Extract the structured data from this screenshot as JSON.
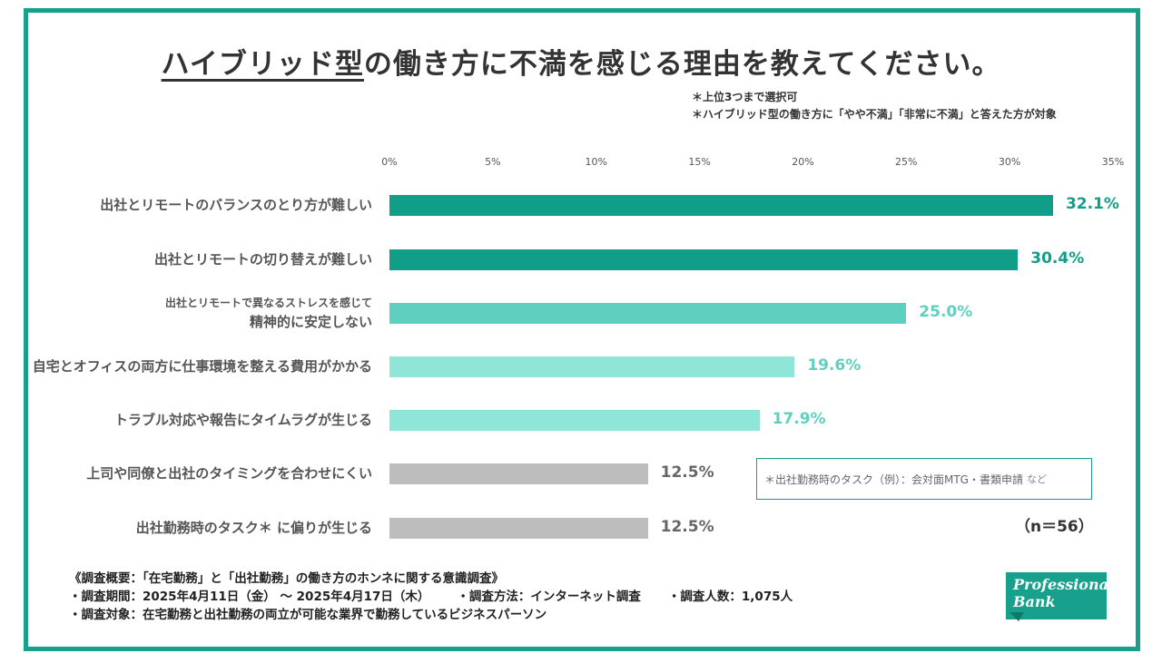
{
  "title": {
    "underlined": "ハイブリッド型",
    "rest": "の働き方に不満を感じる理由を教えてください。"
  },
  "notes": [
    "＊上位3つまで選択可",
    "＊ハイブリッド型の働き方に「やや不満」「非常に不満」と答えた方が対象"
  ],
  "chart_data": {
    "type": "bar",
    "orientation": "horizontal",
    "title": "ハイブリッド型の働き方に不満を感じる理由を教えてください。",
    "xlim": [
      0,
      35
    ],
    "ticks": [
      "0%",
      "5%",
      "10%",
      "15%",
      "20%",
      "25%",
      "30%",
      "35%"
    ],
    "tick_values": [
      0,
      5,
      10,
      15,
      20,
      25,
      30,
      35
    ],
    "categories": [
      [
        "出社とリモートのバランスのとり方が難しい"
      ],
      [
        "出社とリモートの切り替えが難しい"
      ],
      [
        "出社とリモートで異なるストレスを感じて",
        "精神的に安定しない"
      ],
      [
        "自宅とオフィスの両方に仕事環境を整える費用がかかる"
      ],
      [
        "トラブル対応や報告にタイムラグが生じる"
      ],
      [
        "上司や同僚と出社のタイミングを合わせにくい"
      ],
      [
        "出社勤務時のタスク＊ に偏りが生じる"
      ]
    ],
    "values": [
      32.1,
      30.4,
      25.0,
      19.6,
      17.9,
      12.5,
      12.5
    ],
    "value_labels": [
      "32.1%",
      "30.4%",
      "25.0%",
      "19.6%",
      "17.9%",
      "12.5%",
      "12.5%"
    ],
    "bar_colors": [
      "#119e89",
      "#119e89",
      "#5fd0c0",
      "#8fe5d8",
      "#8fe5d8",
      "#bdbdbd",
      "#bdbdbd"
    ],
    "label_colors": [
      "#119e89",
      "#119e89",
      "#5fd0c0",
      "#5fd0c0",
      "#5fd0c0",
      "#666666",
      "#666666"
    ]
  },
  "legend_note": {
    "main": "＊出社勤務時のタスク（例）：会対面MTG・書類申請",
    "suffix": "など"
  },
  "n_label": "（n＝56）",
  "survey": {
    "overview": "《調査概要：「在宅勤務」と「出社勤務」の働き方のホンネに関する意識調査》",
    "period": "・調査期間：2025年4月11日（金） ～ 2025年4月17日（木）",
    "method": "・調査方法：インターネット調査",
    "count": "・調査人数：1,075人",
    "target": "・調査対象：在宅勤務と出社勤務の両立が可能な業界で勤務しているビジネスパーソン"
  },
  "logo": {
    "line1": "Professional",
    "line2": "Bank"
  }
}
